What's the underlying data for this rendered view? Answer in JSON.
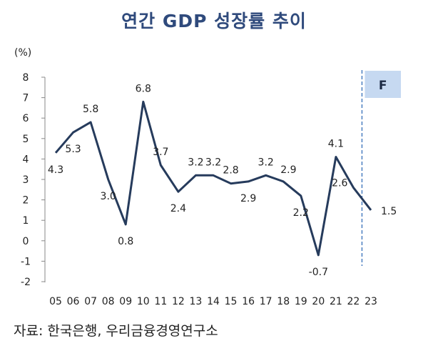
{
  "chart_data": {
    "type": "line",
    "title": "연간 GDP 성장률 추이",
    "ylabel": "(%)",
    "xlabel": "",
    "ylim": [
      -2,
      8
    ],
    "yticks": [
      8,
      7,
      6,
      5,
      4,
      3,
      2,
      1,
      0,
      -1,
      -2
    ],
    "categories": [
      "05",
      "06",
      "07",
      "08",
      "09",
      "10",
      "11",
      "12",
      "13",
      "14",
      "15",
      "16",
      "17",
      "18",
      "19",
      "20",
      "21",
      "22",
      "23"
    ],
    "series": [
      {
        "name": "GDP 성장률",
        "values": [
          4.3,
          5.3,
          5.8,
          3.0,
          0.8,
          6.8,
          3.7,
          2.4,
          3.2,
          3.2,
          2.8,
          2.9,
          3.2,
          2.9,
          2.2,
          -0.7,
          4.1,
          2.6,
          1.5
        ],
        "color": "#263b5c"
      }
    ],
    "forecast_label": "F",
    "forecast_start": "22",
    "forecast_color": "#c6d9f1",
    "forecast_line_color": "#4a7ec0"
  },
  "source": "자료: 한국은행, 우리금융경영연구소"
}
